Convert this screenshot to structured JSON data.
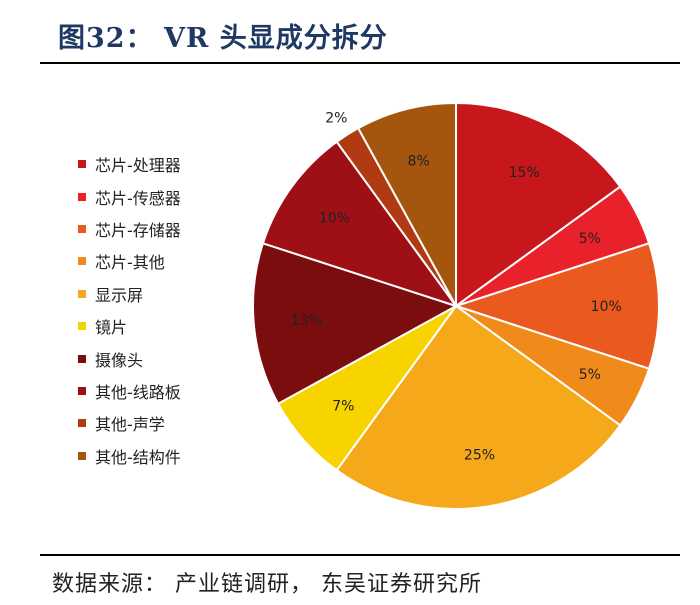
{
  "header": {
    "title": "图32： VR 头显成分拆分"
  },
  "footer": {
    "source": "数据来源： 产业链调研， 东吴证券研究所"
  },
  "chart_data": {
    "type": "pie",
    "title": "",
    "slices": [
      {
        "label": "芯片-处理器",
        "value": 15,
        "display": "15%",
        "color": "#c8161d"
      },
      {
        "label": "芯片-传感器",
        "value": 5,
        "display": "5%",
        "color": "#e8212a"
      },
      {
        "label": "芯片-存储器",
        "value": 10,
        "display": "10%",
        "color": "#ea5a1e"
      },
      {
        "label": "芯片-其他",
        "value": 5,
        "display": "5%",
        "color": "#f08a1a"
      },
      {
        "label": "显示屏",
        "value": 25,
        "display": "25%",
        "color": "#f6a81b"
      },
      {
        "label": "镜片",
        "value": 7,
        "display": "7%",
        "color": "#f7d300"
      },
      {
        "label": "摄像头",
        "value": 13,
        "display": "13%",
        "color": "#7b0d0f"
      },
      {
        "label": "其他-线路板",
        "value": 10,
        "display": "10%",
        "color": "#9e1015"
      },
      {
        "label": "其他-声学",
        "value": 2,
        "display": "2%",
        "color": "#b03a12"
      },
      {
        "label": "其他-结构件",
        "value": 8,
        "display": "8%",
        "color": "#a4560e"
      }
    ],
    "legend_position": "left"
  }
}
